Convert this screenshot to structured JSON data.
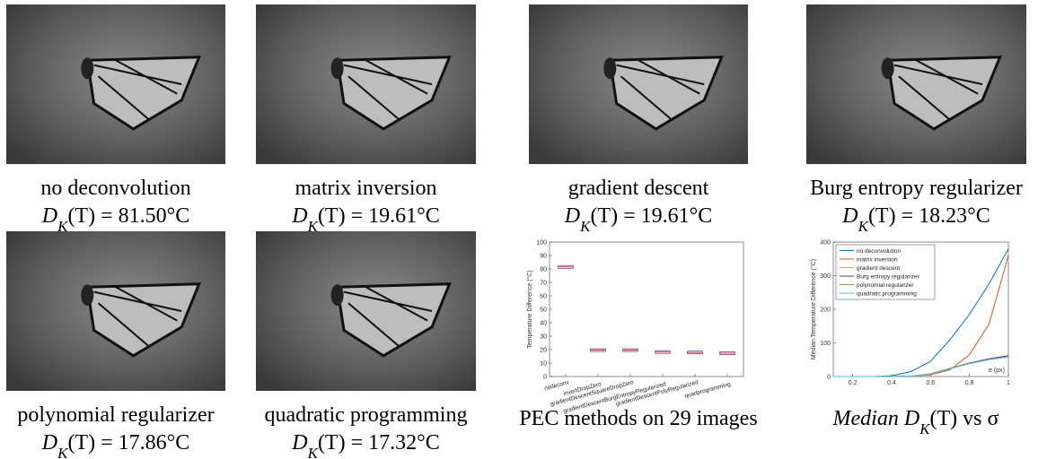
{
  "panels": [
    {
      "caption": "no deconvolution",
      "metric": "D_K(T) = 81.50°C"
    },
    {
      "caption": "matrix inversion",
      "metric": "D_K(T) = 19.61°C"
    },
    {
      "caption": "gradient descent",
      "metric": "D_K(T) = 19.61°C"
    },
    {
      "caption": "Burg entropy regularizer",
      "metric": "D_K(T) = 18.23°C"
    },
    {
      "caption": "polynomial regularizer",
      "metric": "D_K(T) = 17.86°C"
    },
    {
      "caption": "quadratic programming",
      "metric": "D_K(T) = 17.32°C"
    }
  ],
  "chart_data": [
    {
      "type": "box",
      "caption": "PEC methods on 29 images",
      "ylabel": "Temperature Difference (°C)",
      "categories": [
        "nodeconv",
        "invertDropZero",
        "gradientDescentSquareDropZero",
        "gradientDescentBurgEntropyRegularized",
        "gradientDescentPolyRegularized",
        "quadprogramming"
      ],
      "values": [
        81.5,
        19.61,
        19.61,
        18.23,
        17.86,
        17.32
      ],
      "color": "#7E2F8E",
      "median_color": "#d62728",
      "ylim": [
        0,
        100
      ],
      "yticks": [
        0,
        10,
        20,
        30,
        40,
        50,
        60,
        70,
        80,
        90,
        100
      ]
    },
    {
      "type": "line",
      "caption": "Median D_K(T) vs σ",
      "ylabel": "Median Temperature Difference (°C)",
      "xlabel": "σ (px)",
      "x": [
        0.1,
        0.2,
        0.3,
        0.4,
        0.5,
        0.6,
        0.7,
        0.8,
        0.9,
        1.0
      ],
      "series": [
        {
          "name": "no deconvolution",
          "color": "#0072BD",
          "values": [
            0,
            0,
            0,
            2,
            15,
            45,
            110,
            185,
            275,
            380
          ]
        },
        {
          "name": "matrix inversion",
          "color": "#D95319",
          "values": [
            0,
            0,
            0,
            0,
            1,
            5,
            20,
            65,
            155,
            360
          ]
        },
        {
          "name": "gradient descent",
          "color": "#EDB120",
          "values": [
            0,
            0,
            0,
            0,
            1,
            8,
            25,
            40,
            52,
            60
          ]
        },
        {
          "name": "Burg entropy regularizer",
          "color": "#7E2F8E",
          "values": [
            0,
            0,
            0,
            0,
            1,
            8,
            24,
            40,
            53,
            62
          ]
        },
        {
          "name": "polynomial regularizer",
          "color": "#77AC30",
          "values": [
            0,
            0,
            0,
            0,
            1,
            8,
            24,
            39,
            51,
            59
          ]
        },
        {
          "name": "quadratic programming",
          "color": "#4DBEEE",
          "values": [
            0,
            0,
            0,
            0,
            1,
            7,
            23,
            38,
            50,
            58
          ]
        }
      ],
      "xlim": [
        0.1,
        1.0
      ],
      "ylim": [
        0,
        400
      ],
      "xticks": [
        0.2,
        0.4,
        0.6,
        0.8,
        1
      ],
      "yticks": [
        0,
        100,
        200,
        300,
        400
      ],
      "legend": "upper-left"
    }
  ]
}
